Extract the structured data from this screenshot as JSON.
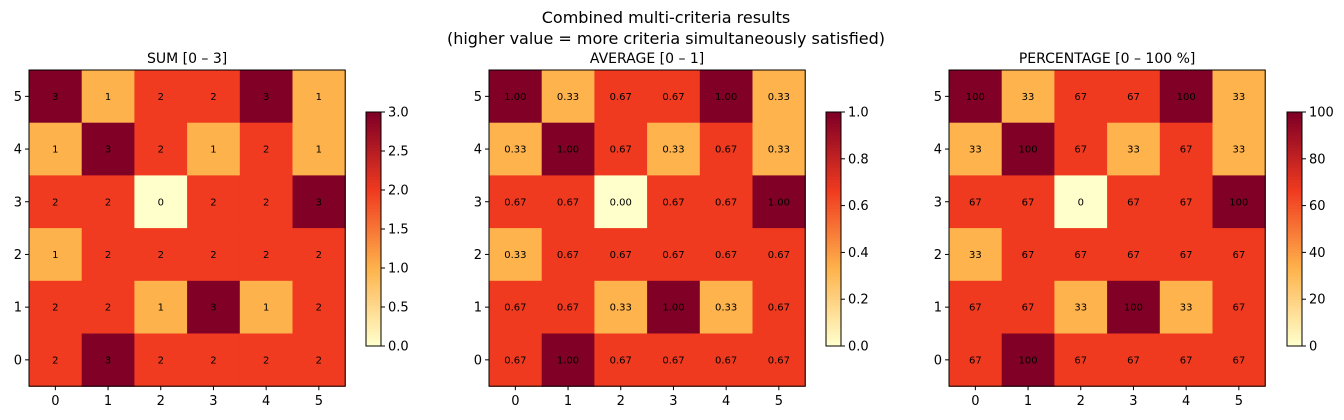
{
  "figure": {
    "title_line1": "Combined multi-criteria results",
    "title_line2": "(higher value = more criteria simultaneously satisfied)"
  },
  "chart_data": [
    {
      "type": "heatmap",
      "title": "SUM  [0 – 3]",
      "x": [
        0,
        1,
        2,
        3,
        4,
        5
      ],
      "y": [
        5,
        4,
        3,
        2,
        1,
        0
      ],
      "values": [
        [
          3,
          1,
          2,
          2,
          3,
          1
        ],
        [
          1,
          3,
          2,
          1,
          2,
          1
        ],
        [
          2,
          2,
          0,
          2,
          2,
          3
        ],
        [
          1,
          2,
          2,
          2,
          2,
          2
        ],
        [
          2,
          2,
          1,
          3,
          1,
          2
        ],
        [
          2,
          3,
          2,
          2,
          2,
          2
        ]
      ],
      "cell_labels": [
        [
          "3",
          "1",
          "2",
          "2",
          "3",
          "1"
        ],
        [
          "1",
          "3",
          "2",
          "1",
          "2",
          "1"
        ],
        [
          "2",
          "2",
          "0",
          "2",
          "2",
          "3"
        ],
        [
          "1",
          "2",
          "2",
          "2",
          "2",
          "2"
        ],
        [
          "2",
          "2",
          "1",
          "3",
          "1",
          "2"
        ],
        [
          "2",
          "3",
          "2",
          "2",
          "2",
          "2"
        ]
      ],
      "vmin": 0,
      "vmax": 3,
      "colorbar_ticks": [
        "0.0",
        "0.5",
        "1.0",
        "1.5",
        "2.0",
        "2.5",
        "3.0"
      ],
      "colormap": [
        "#ffffcc",
        "#feb24c",
        "#f03b20",
        "#800026"
      ]
    },
    {
      "type": "heatmap",
      "title": "AVERAGE  [0 – 1]",
      "x": [
        0,
        1,
        2,
        3,
        4,
        5
      ],
      "y": [
        5,
        4,
        3,
        2,
        1,
        0
      ],
      "values": [
        [
          1.0,
          0.33,
          0.67,
          0.67,
          1.0,
          0.33
        ],
        [
          0.33,
          1.0,
          0.67,
          0.33,
          0.67,
          0.33
        ],
        [
          0.67,
          0.67,
          0.0,
          0.67,
          0.67,
          1.0
        ],
        [
          0.33,
          0.67,
          0.67,
          0.67,
          0.67,
          0.67
        ],
        [
          0.67,
          0.67,
          0.33,
          1.0,
          0.33,
          0.67
        ],
        [
          0.67,
          1.0,
          0.67,
          0.67,
          0.67,
          0.67
        ]
      ],
      "cell_labels": [
        [
          "1.00",
          "0.33",
          "0.67",
          "0.67",
          "1.00",
          "0.33"
        ],
        [
          "0.33",
          "1.00",
          "0.67",
          "0.33",
          "0.67",
          "0.33"
        ],
        [
          "0.67",
          "0.67",
          "0.00",
          "0.67",
          "0.67",
          "1.00"
        ],
        [
          "0.33",
          "0.67",
          "0.67",
          "0.67",
          "0.67",
          "0.67"
        ],
        [
          "0.67",
          "0.67",
          "0.33",
          "1.00",
          "0.33",
          "0.67"
        ],
        [
          "0.67",
          "1.00",
          "0.67",
          "0.67",
          "0.67",
          "0.67"
        ]
      ],
      "vmin": 0,
      "vmax": 1,
      "colorbar_ticks": [
        "0.0",
        "0.2",
        "0.4",
        "0.6",
        "0.8",
        "1.0"
      ],
      "colormap": [
        "#ffffcc",
        "#feb24c",
        "#f03b20",
        "#800026"
      ]
    },
    {
      "type": "heatmap",
      "title": "PERCENTAGE  [0 – 100 %]",
      "x": [
        0,
        1,
        2,
        3,
        4,
        5
      ],
      "y": [
        5,
        4,
        3,
        2,
        1,
        0
      ],
      "values": [
        [
          100,
          33,
          67,
          67,
          100,
          33
        ],
        [
          33,
          100,
          67,
          33,
          67,
          33
        ],
        [
          67,
          67,
          0,
          67,
          67,
          100
        ],
        [
          33,
          67,
          67,
          67,
          67,
          67
        ],
        [
          67,
          67,
          33,
          100,
          33,
          67
        ],
        [
          67,
          100,
          67,
          67,
          67,
          67
        ]
      ],
      "cell_labels": [
        [
          "100",
          "33",
          "67",
          "67",
          "100",
          "33"
        ],
        [
          "33",
          "100",
          "67",
          "33",
          "67",
          "33"
        ],
        [
          "67",
          "67",
          "0",
          "67",
          "67",
          "100"
        ],
        [
          "33",
          "67",
          "67",
          "67",
          "67",
          "67"
        ],
        [
          "67",
          "67",
          "33",
          "100",
          "33",
          "67"
        ],
        [
          "67",
          "100",
          "67",
          "67",
          "67",
          "67"
        ]
      ],
      "vmin": 0,
      "vmax": 100,
      "colorbar_ticks": [
        "0",
        "20",
        "40",
        "60",
        "80",
        "100"
      ],
      "colormap": [
        "#ffffcc",
        "#feb24c",
        "#f03b20",
        "#800026"
      ]
    }
  ]
}
